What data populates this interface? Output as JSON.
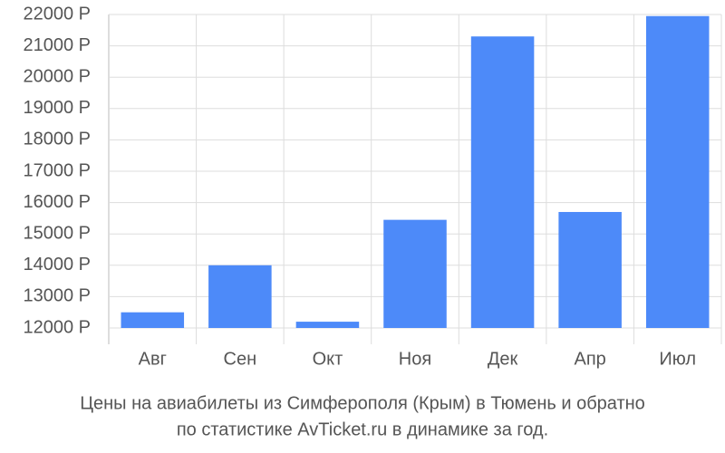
{
  "chart_data": {
    "type": "bar",
    "title": [
      "Цены на авиабилеты из Симферополя (Крым) в Тюмень и обратно",
      "по статистике AvTicket.ru в динамике за год."
    ],
    "categories": [
      "Авг",
      "Сен",
      "Окт",
      "Ноя",
      "Дек",
      "Апр",
      "Июл"
    ],
    "values": [
      12500,
      14000,
      12200,
      15450,
      21300,
      15700,
      21950
    ],
    "color": "#4d8af9",
    "ylim": [
      12000,
      22000
    ],
    "yticks": [
      {
        "value": 12000,
        "label": "12000 Р"
      },
      {
        "value": 13000,
        "label": "13000 Р"
      },
      {
        "value": 14000,
        "label": "14000 Р"
      },
      {
        "value": 15000,
        "label": "15000 Р"
      },
      {
        "value": 16000,
        "label": "16000 Р"
      },
      {
        "value": 17000,
        "label": "17000 Р"
      },
      {
        "value": 18000,
        "label": "18000 Р"
      },
      {
        "value": 19000,
        "label": "19000 Р"
      },
      {
        "value": 20000,
        "label": "20000 Р"
      },
      {
        "value": 21000,
        "label": "21000 Р"
      },
      {
        "value": 22000,
        "label": "22000 Р"
      }
    ],
    "grid": true
  }
}
